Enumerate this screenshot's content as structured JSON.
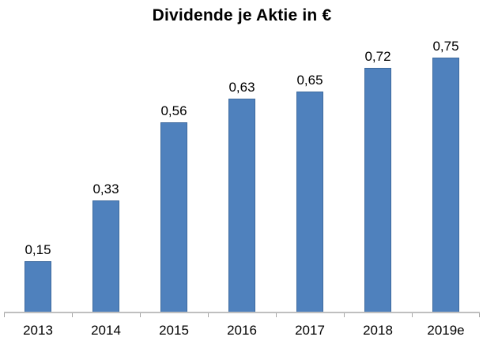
{
  "chart_data": {
    "type": "bar",
    "title": "Dividende je Aktie in €",
    "categories": [
      "2013",
      "2014",
      "2015",
      "2016",
      "2017",
      "2018",
      "2019e"
    ],
    "values": [
      0.15,
      0.33,
      0.56,
      0.63,
      0.65,
      0.72,
      0.75
    ],
    "value_labels": [
      "0,15",
      "0,33",
      "0,56",
      "0,63",
      "0,65",
      "0,72",
      "0,75"
    ],
    "xlabel": "",
    "ylabel": "",
    "ylim": [
      0,
      0.8
    ],
    "grid": false,
    "legend_position": "none",
    "colors": {
      "bar_fill": "#4f81bd",
      "bar_border": "#3e6a9e",
      "axis_line": "#bfbfbf",
      "tick": "#a6a6a6",
      "text": "#000000",
      "background": "#ffffff"
    }
  }
}
